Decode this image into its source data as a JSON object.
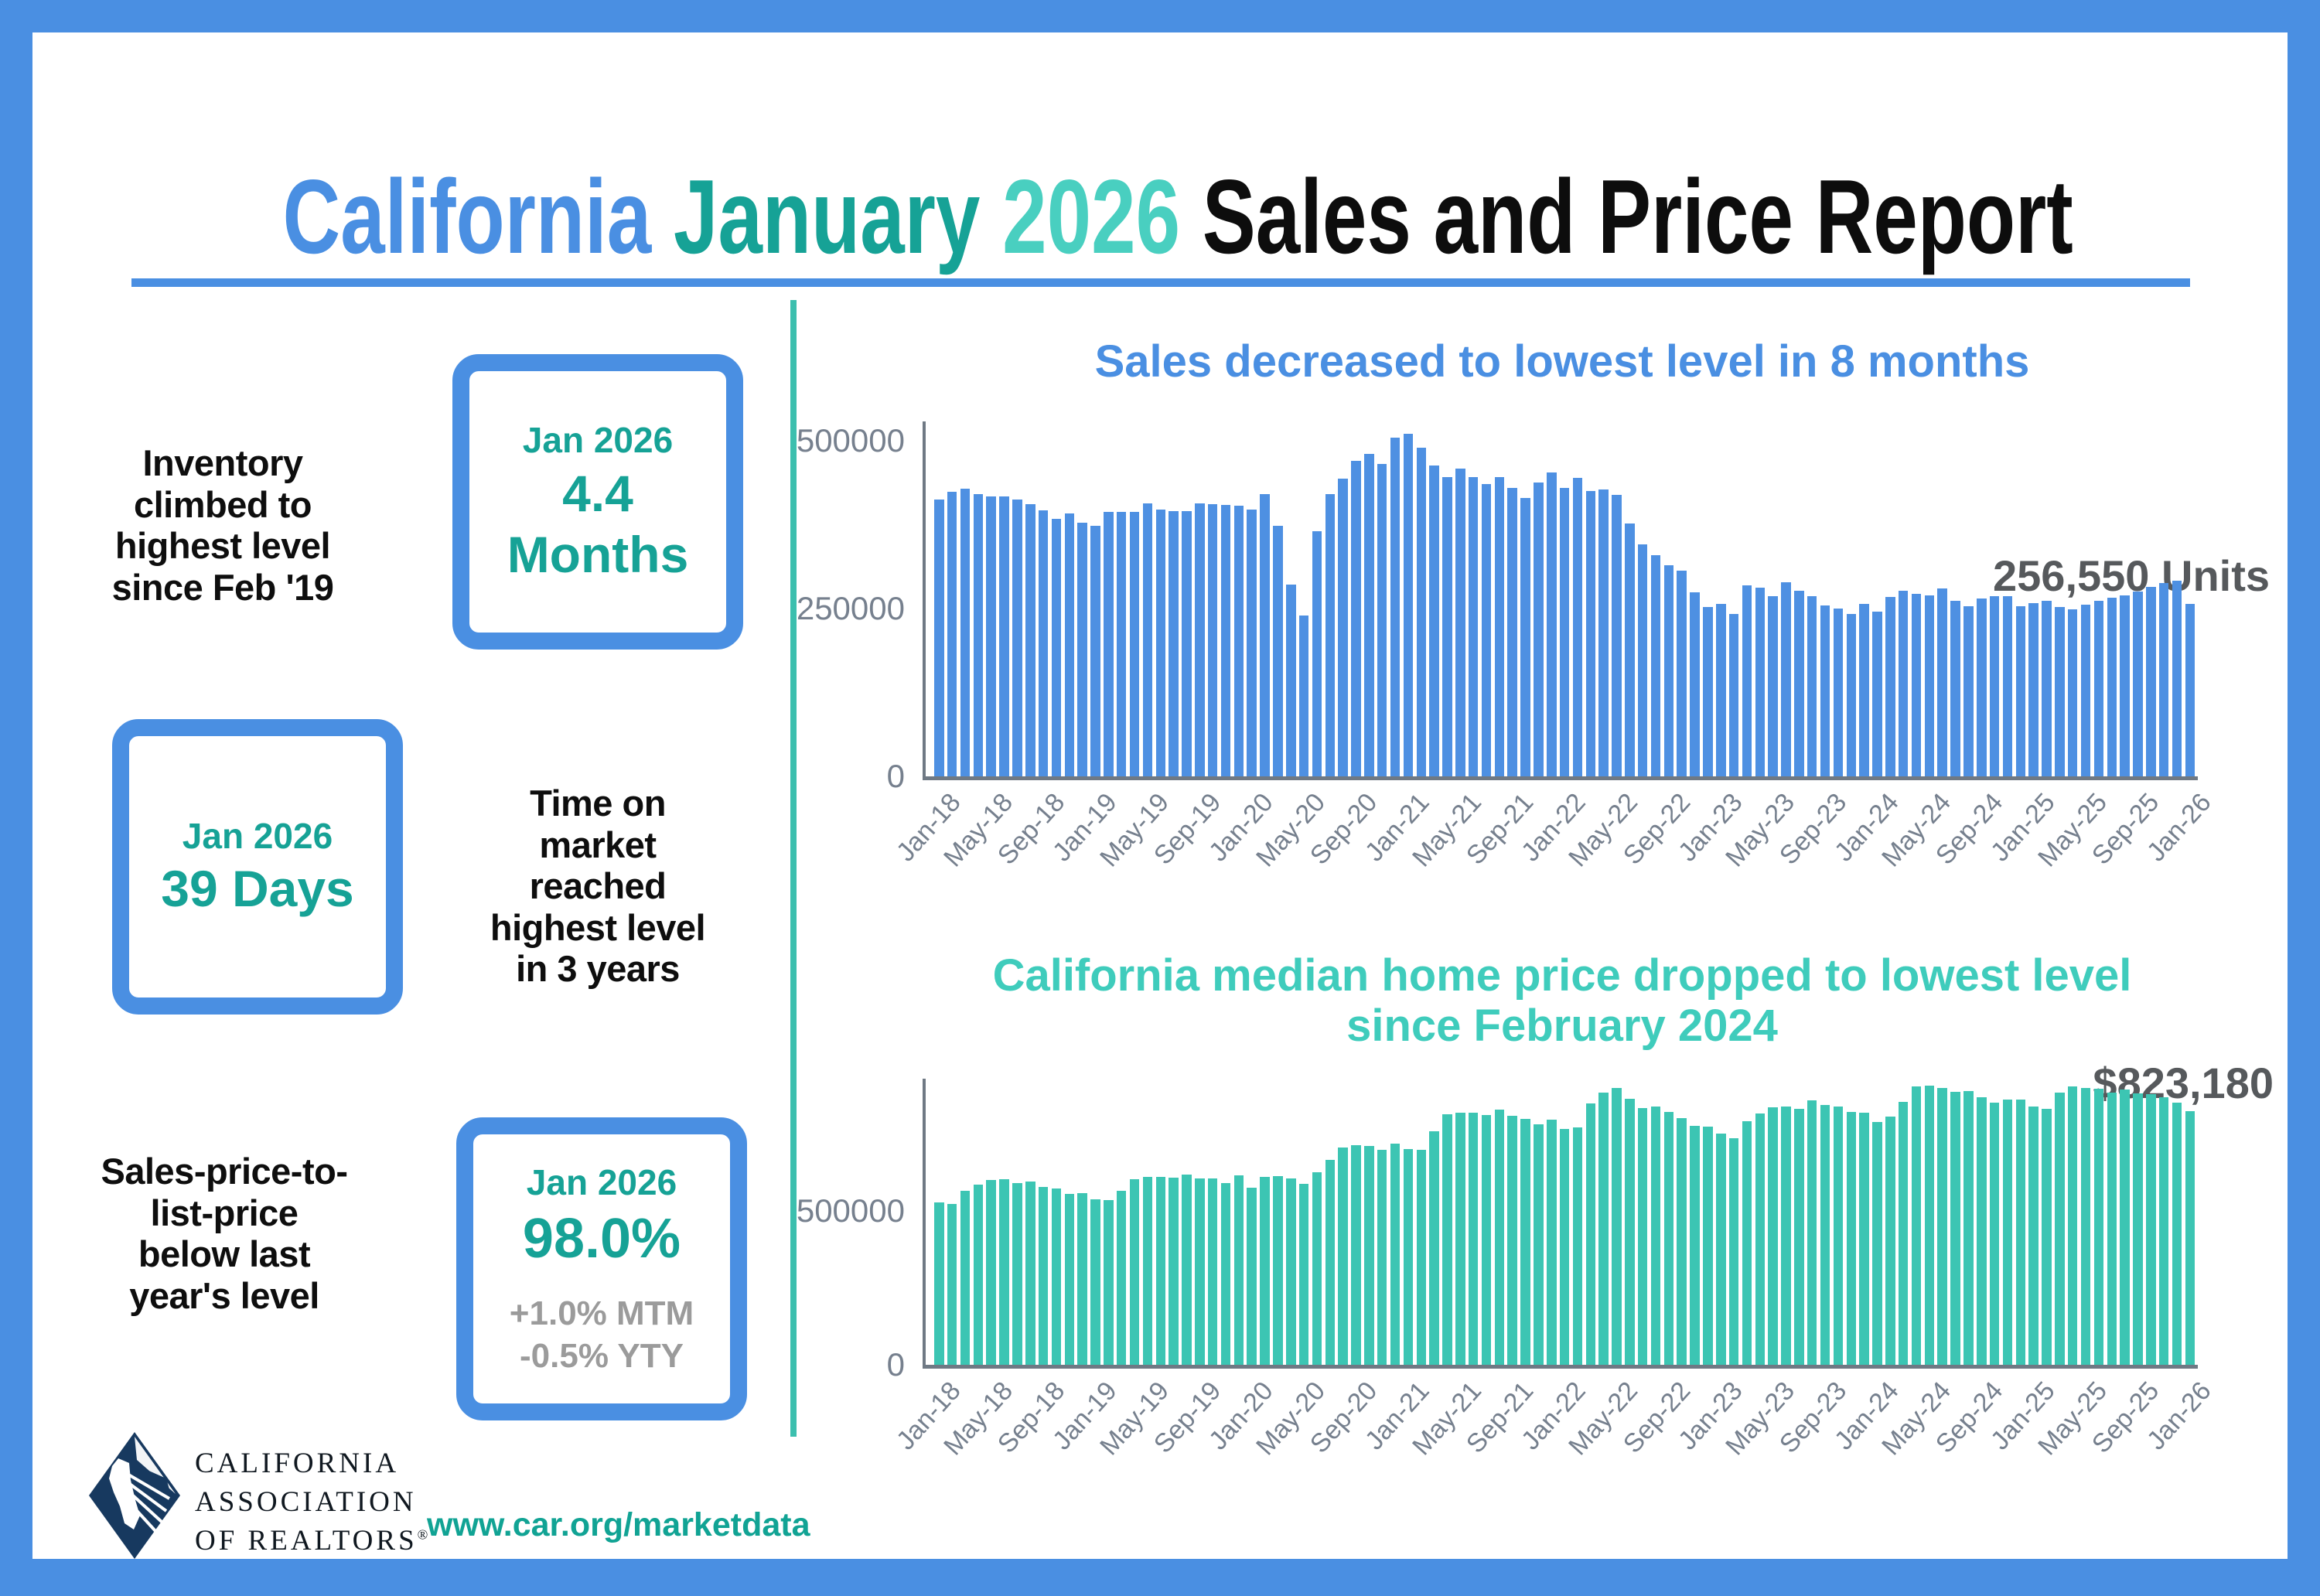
{
  "title": {
    "part1": "California",
    "part2": "January",
    "part3": "2026",
    "part4": "Sales and Price Report"
  },
  "stats": [
    {
      "label": "Inventory climbed to highest level since Feb '19",
      "period": "Jan 2026",
      "value": "4.4 Months"
    },
    {
      "label": "Time on market reached highest level in 3 years",
      "period": "Jan 2026",
      "value": "39 Days"
    },
    {
      "label": "Sales-price-to-list-price below last year's level",
      "period": "Jan 2026",
      "value": "98.0%",
      "sub1": "+1.0% MTM",
      "sub2": "-0.5% YTY"
    }
  ],
  "footer": {
    "org_lines": [
      "CALIFORNIA",
      "ASSOCIATION",
      "OF REALTORS"
    ],
    "registered": "®",
    "url": "www.car.org/marketdata"
  },
  "colors": {
    "blue": "#4A8FE2",
    "teal_dark": "#16A296",
    "teal_light": "#49CFC0",
    "teal_title": "#3FCCBC",
    "teal_divider": "#3CBFAE",
    "url_teal": "#11A394",
    "gray_text": "#9B9B9B",
    "annotation_gray": "#56595C",
    "axis_label": "#76808E",
    "axis_line": "#6F7984",
    "navy": "#17395F"
  },
  "chart_data": [
    {
      "type": "bar",
      "title": "Sales decreased to lowest level in 8 months",
      "title_lines": [
        "Sales decreased to lowest level in 8 months"
      ],
      "annotation": "256,550 Units",
      "xlabel": "",
      "ylabel": "",
      "x_start": "Jan-18",
      "x_end": "Jan-26",
      "x_frequency": "monthly",
      "tick_labels": [
        "Jan-18",
        "May-18",
        "Sep-18",
        "Jan-19",
        "May-19",
        "Sep-19",
        "Jan-20",
        "May-20",
        "Sep-20",
        "Jan-21",
        "May-21",
        "Sep-21",
        "Jan-22",
        "May-22",
        "Sep-22",
        "Jan-23",
        "May-23",
        "Sep-23",
        "Jan-24",
        "May-24",
        "Sep-24",
        "Jan-25",
        "May-25",
        "Sep-25",
        "Jan-26"
      ],
      "yticks": [
        0,
        250000,
        500000
      ],
      "ylim": [
        0,
        560000
      ],
      "grid": false,
      "legend": false,
      "bar_color": "#4E90E2",
      "values": [
        413000,
        424000,
        428000,
        420000,
        417000,
        417000,
        413000,
        406000,
        396000,
        384000,
        392000,
        378000,
        373000,
        394000,
        394000,
        394000,
        407000,
        398000,
        395000,
        395000,
        407000,
        405000,
        404000,
        403000,
        398000,
        421000,
        373000,
        286000,
        240000,
        365000,
        420000,
        444000,
        470000,
        480000,
        465000,
        505000,
        510000,
        490000,
        463000,
        446000,
        458000,
        446000,
        436000,
        446000,
        430000,
        415000,
        438000,
        453000,
        430000,
        445000,
        425000,
        427000,
        419000,
        377000,
        346000,
        330000,
        314000,
        306000,
        274000,
        252000,
        257000,
        242000,
        284000,
        281000,
        268000,
        289000,
        277000,
        269000,
        255000,
        250000,
        242000,
        257000,
        245000,
        267000,
        276000,
        272000,
        270000,
        280000,
        262000,
        253000,
        265000,
        268000,
        269000,
        254000,
        258000,
        262000,
        252000,
        249000,
        256000,
        262000,
        266000,
        270000,
        275000,
        282000,
        288000,
        292000,
        256550
      ]
    },
    {
      "type": "bar",
      "title": "California median home price dropped to lowest level since February 2024",
      "title_lines": [
        "California median home price dropped to lowest level",
        "since February 2024"
      ],
      "annotation": "$823,180",
      "xlabel": "",
      "ylabel": "",
      "x_start": "Jan-18",
      "x_end": "Jan-26",
      "x_frequency": "monthly",
      "tick_labels": [
        "Jan-18",
        "May-18",
        "Sep-18",
        "Jan-19",
        "May-19",
        "Sep-19",
        "Jan-20",
        "May-20",
        "Sep-20",
        "Jan-21",
        "May-21",
        "Sep-21",
        "Jan-22",
        "May-22",
        "Sep-22",
        "Jan-23",
        "May-23",
        "Sep-23",
        "Jan-24",
        "May-24",
        "Sep-24",
        "Jan-25",
        "May-25",
        "Sep-25",
        "Jan-26"
      ],
      "yticks": [
        0,
        500000
      ],
      "ylim": [
        0,
        940000
      ],
      "grid": false,
      "legend": false,
      "bar_color": "#3CC5B3",
      "values": [
        527780,
        522440,
        564830,
        584460,
        600860,
        602760,
        591460,
        596410,
        578850,
        572000,
        554760,
        557600,
        538690,
        534140,
        565880,
        602920,
        611190,
        611420,
        607990,
        617410,
        605680,
        605280,
        589770,
        615090,
        575160,
        610350,
        612440,
        606410,
        588070,
        626170,
        666320,
        706900,
        712430,
        711300,
        699000,
        717930,
        699890,
        699000,
        758990,
        813980,
        818260,
        819630,
        811170,
        827940,
        808890,
        798440,
        782480,
        796570,
        765580,
        771270,
        849080,
        884890,
        898980,
        863790,
        833910,
        839460,
        821680,
        801190,
        777500,
        774580,
        751330,
        735480,
        791490,
        815340,
        836110,
        838260,
        832340,
        859800,
        843340,
        840360,
        822200,
        819740,
        788940,
        806490,
        854490,
        904210,
        908040,
        900720,
        886560,
        888740,
        868150,
        852880,
        860980,
        861020,
        838850,
        832530,
        884350,
        905160,
        899560,
        897750,
        884050,
        893870,
        881500,
        878740,
        868600,
        850820,
        823180
      ]
    }
  ]
}
